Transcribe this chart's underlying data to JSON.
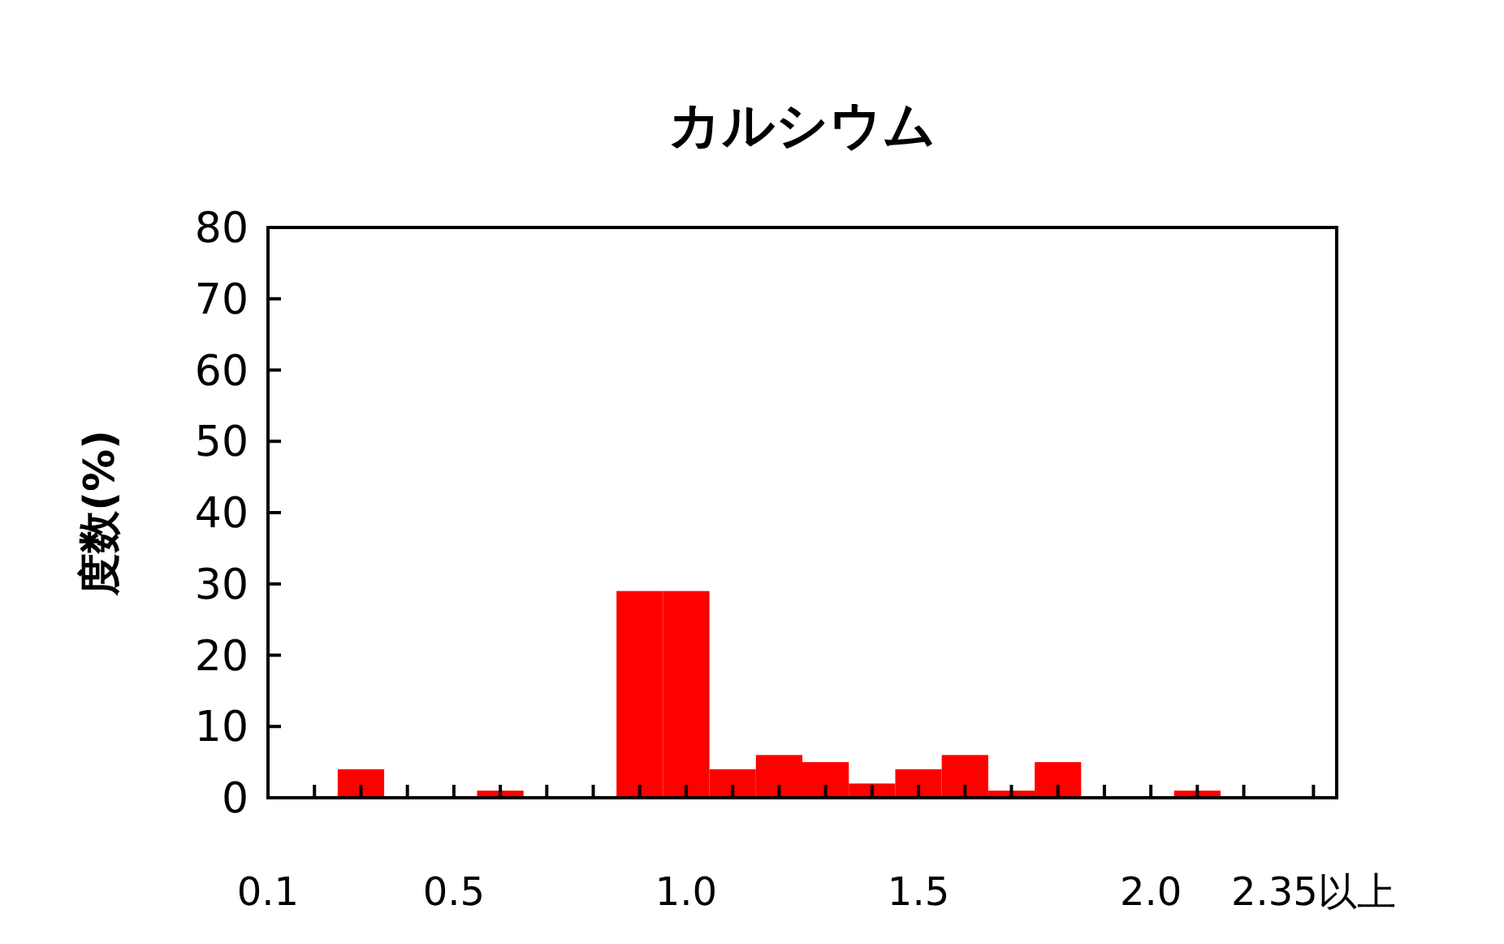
{
  "chart_data": {
    "type": "histogram",
    "title": "カルシウム",
    "ylabel": "度数(%)",
    "bins": [
      0.15,
      0.25,
      0.35,
      0.45,
      0.55,
      0.65,
      0.75,
      0.85,
      0.95,
      1.05,
      1.15,
      1.25,
      1.35,
      1.45,
      1.55,
      1.65,
      1.75,
      1.85,
      1.95,
      2.05,
      2.15,
      2.25,
      2.35
    ],
    "values": [
      0,
      4,
      0,
      0,
      1,
      0,
      0,
      29,
      29,
      4,
      6,
      5,
      2,
      4,
      6,
      1,
      5,
      0,
      0,
      1,
      0,
      0
    ],
    "color": "#ff0000",
    "xlim": [
      0.1,
      2.4
    ],
    "xticks": [
      {
        "value": 0.1,
        "label": "0.1"
      },
      {
        "value": 0.2,
        "label": null
      },
      {
        "value": 0.3,
        "label": null
      },
      {
        "value": 0.4,
        "label": null
      },
      {
        "value": 0.5,
        "label": "0.5"
      },
      {
        "value": 0.6,
        "label": null
      },
      {
        "value": 0.7,
        "label": null
      },
      {
        "value": 0.8,
        "label": null
      },
      {
        "value": 0.9,
        "label": null
      },
      {
        "value": 1.0,
        "label": "1.0"
      },
      {
        "value": 1.1,
        "label": null
      },
      {
        "value": 1.2,
        "label": null
      },
      {
        "value": 1.3,
        "label": null
      },
      {
        "value": 1.4,
        "label": null
      },
      {
        "value": 1.5,
        "label": "1.5"
      },
      {
        "value": 1.6,
        "label": null
      },
      {
        "value": 1.7,
        "label": null
      },
      {
        "value": 1.8,
        "label": null
      },
      {
        "value": 1.9,
        "label": null
      },
      {
        "value": 2.0,
        "label": "2.0"
      },
      {
        "value": 2.1,
        "label": null
      },
      {
        "value": 2.2,
        "label": null
      },
      {
        "value": 2.35,
        "label": "2.35以上"
      }
    ],
    "ylim": [
      0,
      80
    ],
    "yticks": [
      0,
      10,
      20,
      30,
      40,
      50,
      60,
      70,
      80
    ],
    "grid": false
  }
}
